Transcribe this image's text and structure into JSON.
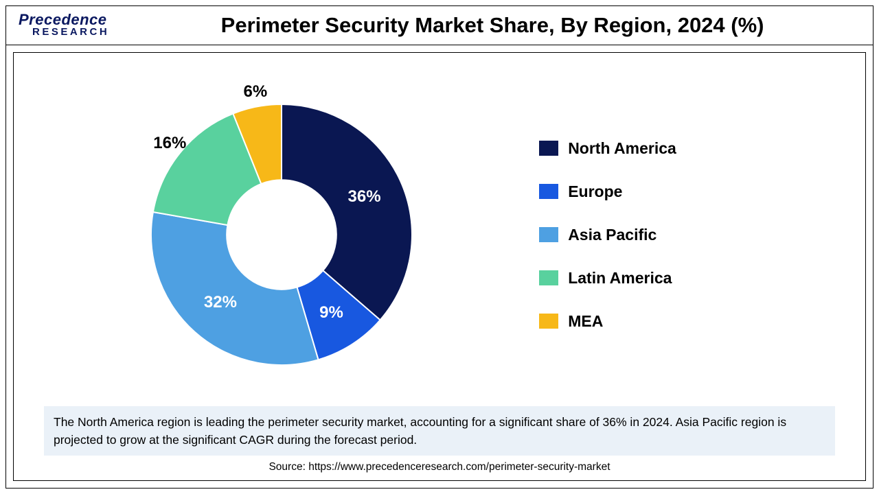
{
  "brand": {
    "name_top": "Precedence",
    "name_bottom": "RESEARCH",
    "color": "#0a1860"
  },
  "title": "Perimeter Security Market Share, By Region, 2024 (%)",
  "chart": {
    "type": "donut",
    "inner_radius_pct": 42,
    "outer_radius_pct": 100,
    "background_color": "#ffffff",
    "label_fontsize": 24,
    "label_fontweight": 700,
    "slices": [
      {
        "label": "North America",
        "value": 36,
        "display": "36%",
        "color": "#0a1752",
        "label_color": "#ffffff"
      },
      {
        "label": "Europe",
        "value": 9,
        "display": "9%",
        "color": "#1858e0",
        "label_color": "#ffffff"
      },
      {
        "label": "Asia Pacific",
        "value": 32,
        "display": "32%",
        "color": "#4ea0e2",
        "label_color": "#ffffff"
      },
      {
        "label": "Latin America",
        "value": 16,
        "display": "16%",
        "color": "#59d19e",
        "label_color": "#000000"
      },
      {
        "label": "MEA",
        "value": 6,
        "display": "6%",
        "color": "#f7b818",
        "label_color": "#000000"
      }
    ],
    "start_angle_deg": -90,
    "slice_border": {
      "color": "#ffffff",
      "width": 2
    }
  },
  "legend": {
    "swatch": {
      "width": 28,
      "height": 22
    },
    "fontsize": 23,
    "fontweight": 700,
    "items": [
      {
        "label": "North America",
        "color": "#0a1752"
      },
      {
        "label": "Europe",
        "color": "#1858e0"
      },
      {
        "label": "Asia Pacific",
        "color": "#4ea0e2"
      },
      {
        "label": "Latin America",
        "color": "#59d19e"
      },
      {
        "label": "MEA",
        "color": "#f7b818"
      }
    ]
  },
  "note": "The North America region is leading the perimeter security market, accounting for a significant share of 36% in 2024. Asia Pacific region is projected to grow at the significant CAGR during the forecast period.",
  "note_bg": "#eaf1f8",
  "source": "Source: https://www.precedenceresearch.com/perimeter-security-market"
}
